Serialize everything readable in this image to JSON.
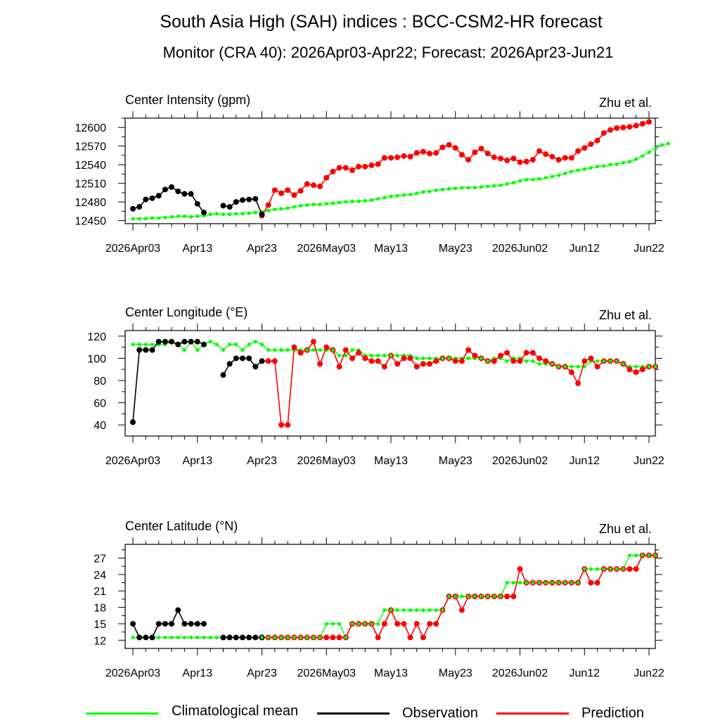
{
  "title": "South Asia High (SAH) indices : BCC-CSM2-HR forecast",
  "subtitle": "Monitor (CRA 40): 2026Apr03-Apr22; Forecast: 2026Apr23-Jun21",
  "credit": "Zhu et al.",
  "colors": {
    "climatology": "#00ff00",
    "observation": "#000000",
    "prediction": "#ff0000"
  },
  "legend": [
    {
      "label": "Climatological mean",
      "color": "#00ff00"
    },
    {
      "label": "Observation",
      "color": "#000000"
    },
    {
      "label": "Prediction",
      "color": "#ff0000"
    }
  ],
  "chart_data": [
    {
      "type": "line",
      "title": "Center Intensity (gpm)",
      "x_start_date": "2026-04-03",
      "x_start_day_index": 0,
      "xlim": [
        0,
        80
      ],
      "xticks": [
        0,
        10,
        20,
        30,
        40,
        50,
        60,
        70,
        80
      ],
      "xtick_labels": [
        "2026Apr03",
        "Apr13",
        "Apr23",
        "2026May03",
        "May13",
        "May23",
        "2026Jun02",
        "Jun12",
        "Jun22"
      ],
      "ylim": [
        12445,
        12615
      ],
      "yticks": [
        12450,
        12480,
        12510,
        12540,
        12570,
        12600
      ],
      "ytick_labels": [
        "12450",
        "12480",
        "12510",
        "12540",
        "12570",
        "12600"
      ],
      "series": [
        {
          "name": "Climatological mean",
          "values": [
            12453,
            12453,
            12453,
            12454,
            12454,
            12455,
            12456,
            12457,
            12457,
            12456,
            12457,
            12458,
            12460,
            12461,
            12460,
            12460,
            12461,
            12461,
            12462,
            12463,
            12464,
            12466,
            12468,
            12469,
            12470,
            12472,
            12474,
            12475,
            12476,
            12476,
            12477,
            12478,
            12479,
            12480,
            12481,
            12481,
            12482,
            12483,
            12485,
            12487,
            12489,
            12490,
            12491,
            12492,
            12494,
            12496,
            12497,
            12499,
            12500,
            12501,
            12502,
            12503,
            12503,
            12503,
            12504,
            12505,
            12506,
            12507,
            12509,
            12511,
            12514,
            12516,
            12516,
            12517,
            12519,
            12521,
            12523,
            12526,
            12529,
            12531,
            12533,
            12535,
            12537,
            12538,
            12540,
            12541,
            12543,
            12545,
            12549,
            12554,
            12560,
            12566,
            12572,
            12574
          ]
        },
        {
          "name": "Observation",
          "values": [
            12469,
            12472,
            12484,
            12486,
            12490,
            12500,
            12504,
            12497,
            12493,
            12493,
            12477,
            12463,
            null,
            null,
            12474,
            12472,
            12480,
            12483,
            12484,
            12485,
            12460
          ]
        },
        {
          "name": "Prediction",
          "values": [
            null,
            null,
            null,
            null,
            null,
            null,
            null,
            null,
            null,
            null,
            null,
            null,
            null,
            null,
            null,
            null,
            null,
            null,
            null,
            null,
            12458,
            12475,
            12499,
            12494,
            12499,
            12491,
            12498,
            12509,
            12507,
            12505,
            12519,
            12529,
            12535,
            12535,
            12531,
            12537,
            12537,
            12539,
            12541,
            12551,
            12551,
            12552,
            12554,
            12553,
            12559,
            12561,
            12558,
            12559,
            12568,
            12572,
            12567,
            12556,
            12548,
            12560,
            12566,
            12558,
            12552,
            12550,
            12547,
            12550,
            12544,
            12545,
            12548,
            12562,
            12557,
            12553,
            12548,
            12551,
            12551,
            12562,
            12567,
            12573,
            12579,
            12591,
            12596,
            12599,
            12600,
            12601,
            12603,
            12606,
            12609
          ]
        }
      ]
    },
    {
      "type": "line",
      "title": "Center Longitude (°E)",
      "x_start_date": "2026-04-03",
      "xlim": [
        0,
        80
      ],
      "xticks": [
        0,
        10,
        20,
        30,
        40,
        50,
        60,
        70,
        80
      ],
      "xtick_labels": [
        "2026Apr03",
        "Apr13",
        "Apr23",
        "2026May03",
        "May13",
        "May23",
        "2026Jun02",
        "Jun12",
        "Jun22"
      ],
      "ylim": [
        30,
        125
      ],
      "yticks": [
        40,
        60,
        80,
        100,
        120
      ],
      "ytick_labels": [
        "40",
        "60",
        "80",
        "100",
        "120"
      ],
      "series": [
        {
          "name": "Climatological mean",
          "values": [
            112.5,
            112.5,
            112.5,
            112.5,
            112.5,
            112.5,
            115,
            112.5,
            107.5,
            115,
            107.5,
            112.5,
            115,
            112.5,
            107.5,
            112.5,
            112.5,
            107.5,
            112.5,
            115,
            112.5,
            107.5,
            107.5,
            107.5,
            107.5,
            107.5,
            107.5,
            107.5,
            107.5,
            107.5,
            107.5,
            107.5,
            102.5,
            102.5,
            107.5,
            107.5,
            102.5,
            102.5,
            102.5,
            102.5,
            102.5,
            102.5,
            102.5,
            102.5,
            100,
            100,
            100,
            100,
            100,
            100,
            100,
            100,
            100,
            100,
            100,
            97.5,
            100,
            100,
            97.5,
            100,
            100,
            97.5,
            97.5,
            95,
            95,
            95,
            92.5,
            92.5,
            92.5,
            92.5,
            92.5,
            97.5,
            97.5,
            97.5,
            97.5,
            97.5,
            95,
            92.5,
            92.5,
            92.5,
            92.5,
            92.5
          ]
        },
        {
          "name": "Observation",
          "values": [
            42.5,
            107.5,
            107.5,
            107.5,
            115,
            115,
            115,
            112.5,
            115,
            115,
            115,
            112.5,
            null,
            null,
            85,
            95,
            100,
            100,
            100,
            92.5,
            97.5
          ]
        },
        {
          "name": "Prediction",
          "values": [
            null,
            null,
            null,
            null,
            null,
            null,
            null,
            null,
            null,
            null,
            null,
            null,
            null,
            null,
            null,
            null,
            null,
            null,
            null,
            null,
            97.5,
            97.5,
            97.5,
            40,
            40,
            110,
            105,
            107.5,
            115,
            95,
            110,
            107.5,
            92.5,
            107.5,
            100,
            105,
            100,
            97.5,
            97.5,
            92.5,
            102.5,
            95,
            100,
            100,
            92.5,
            95,
            95,
            97.5,
            100,
            100,
            97.5,
            97.5,
            107.5,
            102.5,
            100,
            97.5,
            97.5,
            102.5,
            105,
            97.5,
            97.5,
            105,
            105,
            100,
            97.5,
            95,
            92.5,
            92.5,
            87.5,
            77.5,
            97.5,
            100,
            92.5,
            97.5,
            97.5,
            97.5,
            95,
            90,
            87.5,
            90,
            92.5,
            92.5
          ]
        }
      ]
    },
    {
      "type": "line",
      "title": "Center Latitude (°N)",
      "x_start_date": "2026-04-03",
      "xlim": [
        0,
        80
      ],
      "xticks": [
        0,
        10,
        20,
        30,
        40,
        50,
        60,
        70,
        80
      ],
      "xtick_labels": [
        "2026Apr03",
        "Apr13",
        "Apr23",
        "2026May03",
        "May13",
        "May23",
        "2026Jun02",
        "Jun12",
        "Jun22"
      ],
      "ylim": [
        10.5,
        29.5
      ],
      "yticks": [
        12,
        15,
        18,
        21,
        24,
        27
      ],
      "ytick_labels": [
        "12",
        "15",
        "18",
        "21",
        "24",
        "27"
      ],
      "series": [
        {
          "name": "Climatological mean",
          "values": [
            12.5,
            12.5,
            12.5,
            12.5,
            12.5,
            12.5,
            12.5,
            12.5,
            12.5,
            12.5,
            12.5,
            12.5,
            12.5,
            12.5,
            12.5,
            12.5,
            12.5,
            12.5,
            12.5,
            12.5,
            12.5,
            12.5,
            12.5,
            12.5,
            12.5,
            12.5,
            12.5,
            12.5,
            12.5,
            12.5,
            15,
            15,
            15,
            12.5,
            15,
            15,
            15,
            15,
            15,
            17.5,
            17.5,
            17.5,
            17.5,
            17.5,
            17.5,
            17.5,
            17.5,
            17.5,
            17.5,
            20,
            20,
            20,
            20,
            20,
            20,
            20,
            20,
            20,
            22.5,
            22.5,
            22.5,
            22.5,
            22.5,
            22.5,
            22.5,
            22.5,
            22.5,
            22.5,
            22.5,
            22.5,
            25,
            25,
            25,
            25,
            25,
            25,
            25,
            27.5,
            27.5,
            27.5,
            27.5,
            27.5
          ]
        },
        {
          "name": "Observation",
          "values": [
            15,
            12.5,
            12.5,
            12.5,
            15,
            15,
            15,
            17.5,
            15,
            15,
            15,
            15,
            null,
            null,
            12.5,
            12.5,
            12.5,
            12.5,
            12.5,
            12.5,
            12.5
          ]
        },
        {
          "name": "Prediction",
          "values": [
            null,
            null,
            null,
            null,
            null,
            null,
            null,
            null,
            null,
            null,
            null,
            null,
            null,
            null,
            null,
            null,
            null,
            null,
            null,
            null,
            12.5,
            12.5,
            12.5,
            12.5,
            12.5,
            12.5,
            12.5,
            12.5,
            12.5,
            12.5,
            12.5,
            12.5,
            12.5,
            12.5,
            15,
            15,
            15,
            15,
            12.5,
            15,
            17.5,
            15,
            15,
            12.5,
            15,
            12.5,
            15,
            15,
            17.5,
            20,
            20,
            17.5,
            20,
            20,
            20,
            20,
            20,
            20,
            20,
            20,
            25,
            22.5,
            22.5,
            22.5,
            22.5,
            22.5,
            22.5,
            22.5,
            22.5,
            22.5,
            25,
            22.5,
            22.5,
            25,
            25,
            25,
            25,
            25,
            25,
            27.5,
            27.5,
            27.5
          ]
        }
      ]
    }
  ]
}
